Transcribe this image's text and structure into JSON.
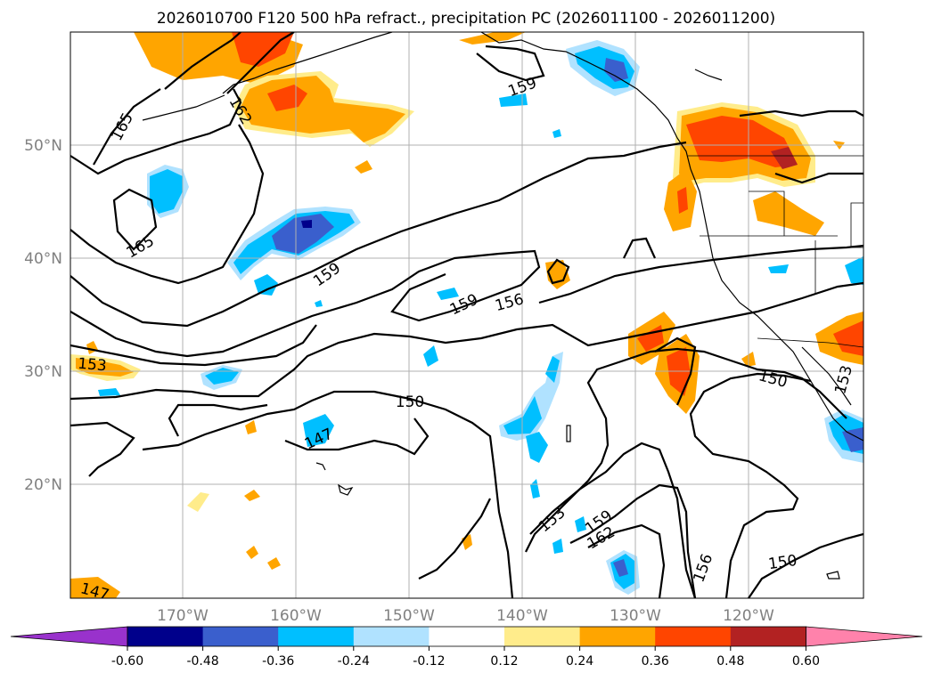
{
  "title": "2026010700 F120 500 hPa refract., precipitation PC (2026011100 - 2026011200)",
  "axes": {
    "lon_ticks": [
      "170°W",
      "160°W",
      "150°W",
      "140°W",
      "130°W",
      "120°W"
    ],
    "lat_ticks": [
      "50°N",
      "40°N",
      "30°N",
      "20°N"
    ]
  },
  "colorbar": {
    "ticks": [
      "-0.60",
      "-0.48",
      "-0.36",
      "-0.24",
      "-0.12",
      "0.12",
      "0.24",
      "0.36",
      "0.48",
      "0.60"
    ],
    "colors": [
      "#9932cc",
      "#00008b",
      "#3a5fcd",
      "#00bfff",
      "#b0e2ff",
      "#ffffff",
      "#ffec8b",
      "#ffa500",
      "#ff4500",
      "#b22222",
      "#ff82ab"
    ]
  },
  "contour_labels": [
    "165",
    "162",
    "159",
    "165",
    "159",
    "159",
    "156",
    "153",
    "150",
    "147",
    "150",
    "153",
    "159",
    "162",
    "156",
    "150",
    "147",
    "153"
  ],
  "colors": {
    "grid": "#b0b0b0",
    "tick_label": "#808080"
  }
}
